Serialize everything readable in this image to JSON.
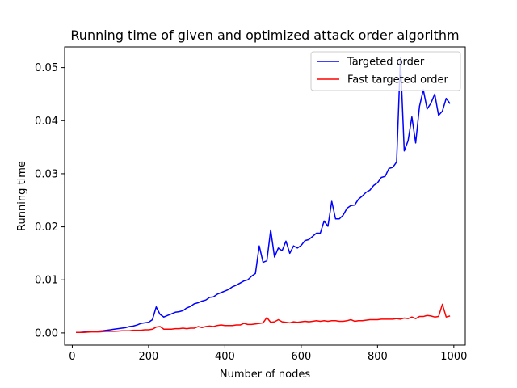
{
  "chart_data": {
    "type": "line",
    "title": "Running time of given and optimized attack order algorithm",
    "xlabel": "Number of nodes",
    "ylabel": "Running time",
    "xlim": [
      -20,
      1030
    ],
    "ylim": [
      -0.0023,
      0.0539
    ],
    "xticks": [
      0,
      200,
      400,
      600,
      800,
      1000
    ],
    "xtick_labels": [
      "0",
      "200",
      "400",
      "600",
      "800",
      "1000"
    ],
    "yticks": [
      0.0,
      0.01,
      0.02,
      0.03,
      0.04,
      0.05
    ],
    "ytick_labels": [
      "0.00",
      "0.01",
      "0.02",
      "0.03",
      "0.04",
      "0.05"
    ],
    "grid": false,
    "legend_position": "top-right",
    "x": [
      10,
      20,
      30,
      40,
      50,
      60,
      70,
      80,
      90,
      100,
      110,
      120,
      130,
      140,
      150,
      160,
      170,
      180,
      190,
      200,
      210,
      220,
      230,
      240,
      250,
      260,
      270,
      280,
      290,
      300,
      310,
      320,
      330,
      340,
      350,
      360,
      370,
      380,
      390,
      400,
      410,
      420,
      430,
      440,
      450,
      460,
      470,
      480,
      490,
      500,
      510,
      520,
      530,
      540,
      550,
      560,
      570,
      580,
      590,
      600,
      610,
      620,
      630,
      640,
      650,
      660,
      670,
      680,
      690,
      700,
      710,
      720,
      730,
      740,
      750,
      760,
      770,
      780,
      790,
      800,
      810,
      820,
      830,
      840,
      850,
      860,
      870,
      880,
      890,
      900,
      910,
      920,
      930,
      940,
      950,
      960,
      970,
      980,
      990
    ],
    "series": [
      {
        "name": "Targeted order",
        "color": "#0000ff",
        "values": [
          0.0001,
          0.0001,
          0.00015,
          0.0002,
          0.00025,
          0.0003,
          0.00035,
          0.0004,
          0.0005,
          0.0006,
          0.0007,
          0.0008,
          0.0009,
          0.001,
          0.0012,
          0.0013,
          0.0015,
          0.0018,
          0.0019,
          0.002,
          0.0025,
          0.0049,
          0.0035,
          0.003,
          0.0033,
          0.0036,
          0.0039,
          0.004,
          0.0042,
          0.0047,
          0.005,
          0.0055,
          0.0057,
          0.006,
          0.0062,
          0.0067,
          0.0068,
          0.0073,
          0.0076,
          0.0079,
          0.0082,
          0.0087,
          0.009,
          0.0094,
          0.0098,
          0.01,
          0.0107,
          0.0112,
          0.0164,
          0.0133,
          0.0136,
          0.0194,
          0.0143,
          0.016,
          0.0155,
          0.0173,
          0.015,
          0.0164,
          0.016,
          0.0165,
          0.0174,
          0.0176,
          0.0182,
          0.0188,
          0.0188,
          0.0211,
          0.0201,
          0.0248,
          0.0215,
          0.0215,
          0.0222,
          0.0235,
          0.024,
          0.0241,
          0.0252,
          0.0258,
          0.0265,
          0.0269,
          0.0278,
          0.0283,
          0.0293,
          0.0295,
          0.031,
          0.0312,
          0.0322,
          0.0518,
          0.0343,
          0.0362,
          0.0407,
          0.0358,
          0.0427,
          0.0458,
          0.0422,
          0.0433,
          0.045,
          0.041,
          0.0418,
          0.0442,
          0.0432
        ]
      },
      {
        "name": "Fast targeted order",
        "color": "#ff0000",
        "values": [
          0.0001,
          0.0001,
          0.0001,
          0.00015,
          0.0002,
          0.0002,
          0.0002,
          0.00025,
          0.0003,
          0.0003,
          0.0003,
          0.00035,
          0.0004,
          0.0004,
          0.0004,
          0.0005,
          0.0005,
          0.0005,
          0.0006,
          0.0006,
          0.0007,
          0.0011,
          0.0012,
          0.0007,
          0.0007,
          0.0007,
          0.0008,
          0.0008,
          0.0009,
          0.0008,
          0.0009,
          0.0009,
          0.0012,
          0.001,
          0.0012,
          0.0013,
          0.0012,
          0.0014,
          0.0015,
          0.0014,
          0.0014,
          0.0014,
          0.0015,
          0.0015,
          0.0018,
          0.0016,
          0.0016,
          0.0017,
          0.0018,
          0.0019,
          0.0029,
          0.002,
          0.0021,
          0.0025,
          0.0021,
          0.002,
          0.0019,
          0.0021,
          0.002,
          0.0021,
          0.0022,
          0.0021,
          0.0022,
          0.0023,
          0.0022,
          0.0023,
          0.0022,
          0.0023,
          0.0023,
          0.0022,
          0.0022,
          0.0023,
          0.0025,
          0.0022,
          0.0023,
          0.0023,
          0.0024,
          0.0025,
          0.0025,
          0.0025,
          0.0026,
          0.0026,
          0.0026,
          0.0026,
          0.0027,
          0.0026,
          0.0028,
          0.0027,
          0.003,
          0.0027,
          0.0031,
          0.0031,
          0.0033,
          0.0032,
          0.003,
          0.0031,
          0.0054,
          0.003,
          0.0032
        ]
      }
    ]
  }
}
